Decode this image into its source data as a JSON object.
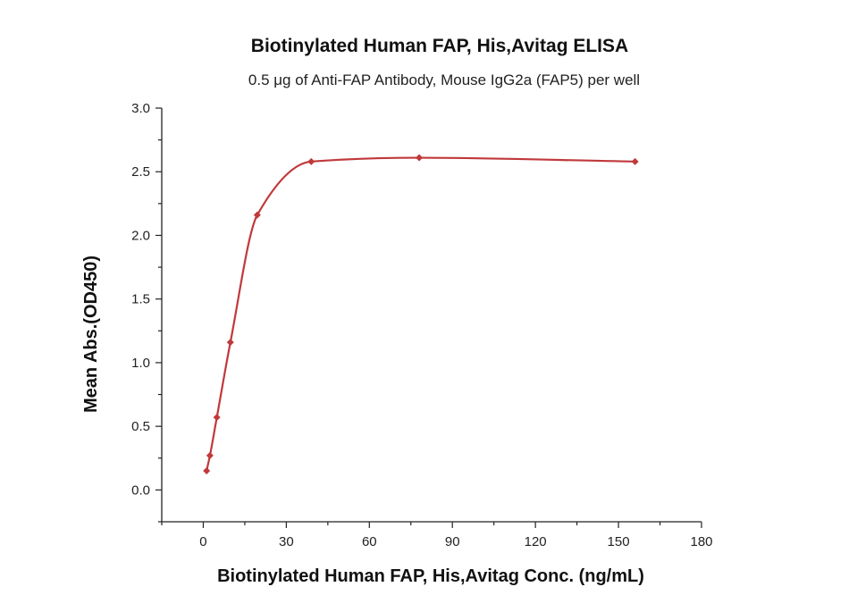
{
  "chart_data": {
    "type": "scatter",
    "title": "Biotinylated Human FAP, His,Avitag ELISA",
    "subtitle": "0.5 μg of Anti-FAP Antibody, Mouse IgG2a (FAP5) per well",
    "xlabel": "Biotinylated Human FAP, His,Avitag Conc. (ng/mL)",
    "ylabel": "Mean Abs.(OD450)",
    "xlim": [
      -15,
      180
    ],
    "ylim": [
      -0.25,
      3.0
    ],
    "xticks": [
      0,
      30,
      60,
      90,
      120,
      150,
      180
    ],
    "yticks": [
      0.0,
      0.5,
      1.0,
      1.5,
      2.0,
      2.5,
      3.0
    ],
    "grid": false,
    "series": [
      {
        "color": "#c0393b",
        "marker": "diamond",
        "fit": "4PL",
        "x": [
          1.2,
          2.4,
          4.9,
          9.8,
          19.5,
          39,
          78,
          156
        ],
        "y": [
          0.15,
          0.27,
          0.57,
          1.16,
          2.16,
          2.58,
          2.61,
          2.58
        ]
      }
    ]
  }
}
